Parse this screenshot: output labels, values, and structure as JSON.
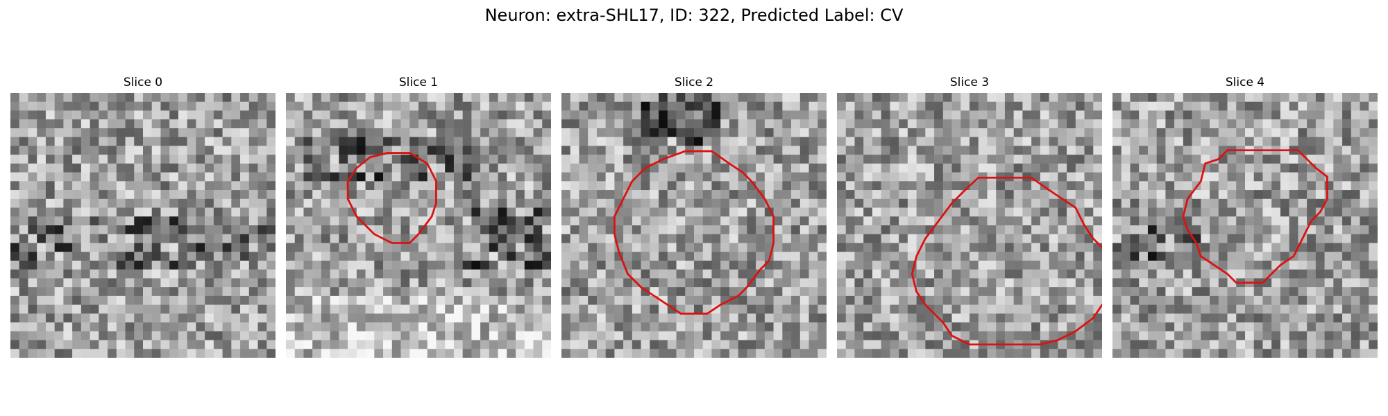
{
  "figure": {
    "title": "Neuron: extra-SHL17, ID: 322, Predicted Label: CV"
  },
  "panels": [
    {
      "title": "Slice 0",
      "contour_color": "#dd1111",
      "has_contour": false,
      "seed": 17
    },
    {
      "title": "Slice 1",
      "contour_color": "#dd1111",
      "has_contour": true,
      "seed": 41
    },
    {
      "title": "Slice 2",
      "contour_color": "#dd1111",
      "has_contour": true,
      "seed": 73
    },
    {
      "title": "Slice 3",
      "contour_color": "#dd1111",
      "has_contour": true,
      "seed": 109
    },
    {
      "title": "Slice 4",
      "contour_color": "#dd1111",
      "has_contour": true,
      "seed": 151
    }
  ],
  "colormap": "gray"
}
